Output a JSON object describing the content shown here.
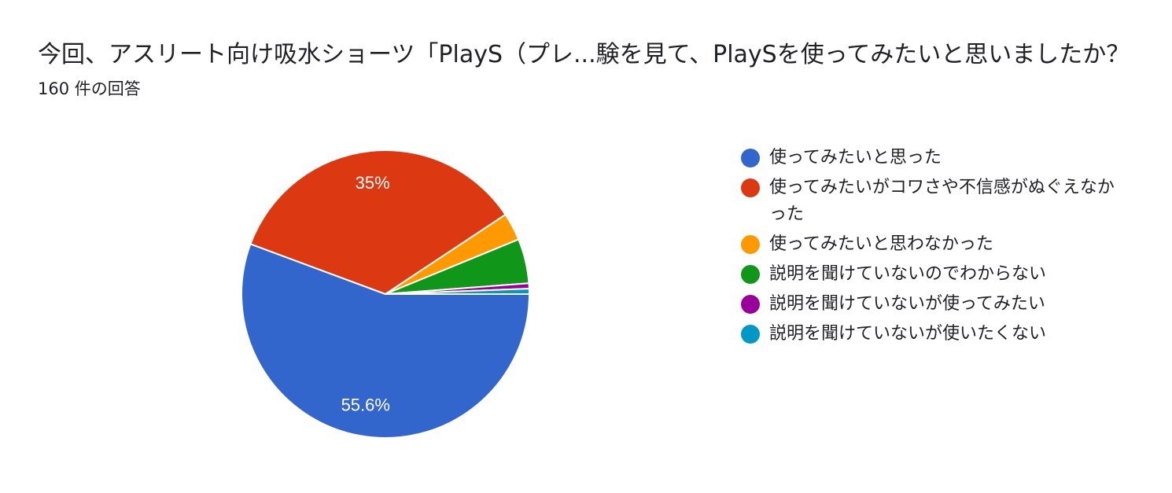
{
  "header": {
    "title": "今回、アスリート向け吸水ショーツ「PlayS（プレ...験を見て、PlaySを使ってみたいと思いましたか？",
    "subtitle": "160 件の回答"
  },
  "chart_data": {
    "type": "pie",
    "title": "今回、アスリート向け吸水ショーツ「PlayS（プレ...験を見て、PlaySを使ってみたいと思いましたか？",
    "response_count": "160 件の回答",
    "legend_position": "right",
    "start_angle_note": "slices go clockwise from the 3 o'clock direction",
    "slices": [
      {
        "label": "使ってみたいと思った",
        "value": 55.6,
        "display": "55.6%",
        "color": "#3366cc"
      },
      {
        "label": "使ってみたいがコワさや不信感がぬぐえなかった",
        "value": 35.0,
        "display": "35%",
        "color": "#dc3912"
      },
      {
        "label": "使ってみたいと思わなかった",
        "value": 3.1,
        "display": "",
        "color": "#ff9900"
      },
      {
        "label": "説明を聞けていないのでわからない",
        "value": 5.0,
        "display": "",
        "color": "#109618"
      },
      {
        "label": "説明を聞けていないが使ってみたい",
        "value": 0.6,
        "display": "",
        "color": "#990099"
      },
      {
        "label": "説明を聞けていないが使いたくない",
        "value": 0.6,
        "display": "",
        "color": "#0099c6"
      }
    ]
  }
}
